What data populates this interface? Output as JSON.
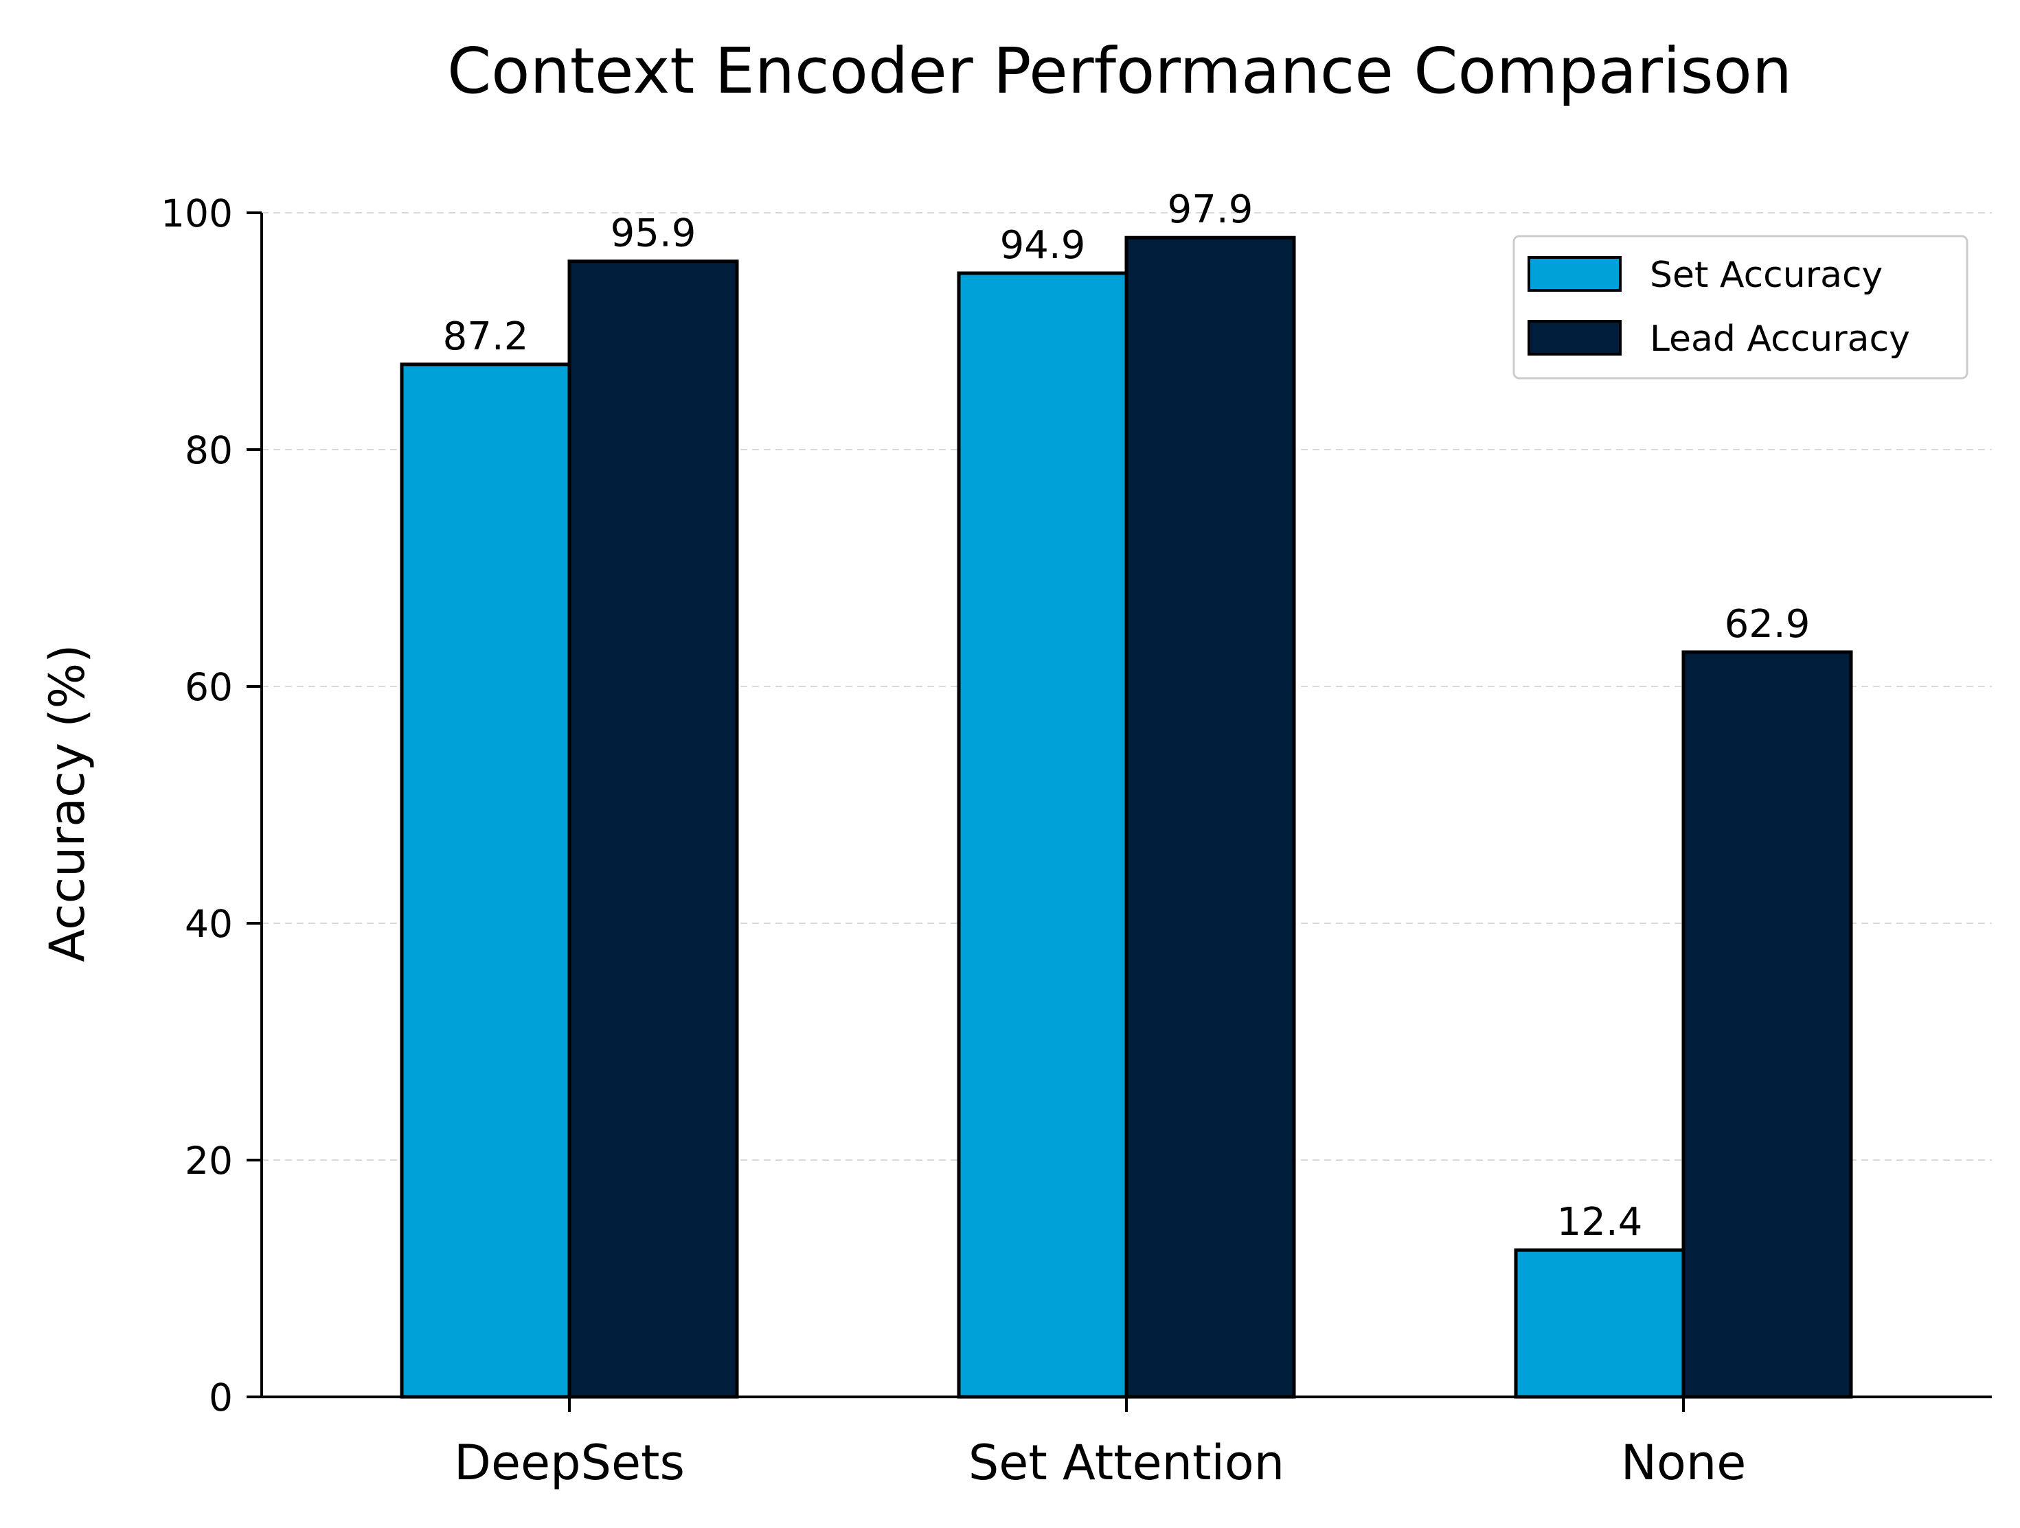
{
  "chart_data": {
    "type": "bar",
    "title": "Context Encoder Performance Comparison",
    "xlabel": "",
    "ylabel": "Accuracy (%)",
    "ylim": [
      0,
      100
    ],
    "yticks": [
      0,
      20,
      40,
      60,
      80,
      100
    ],
    "categories": [
      "DeepSets",
      "Set Attention",
      "None"
    ],
    "series": [
      {
        "name": "Set Accuracy",
        "values": [
          87.2,
          94.9,
          12.4
        ],
        "labels": [
          "87.2",
          "94.9",
          "12.4"
        ],
        "color": "#00a0d8"
      },
      {
        "name": "Lead Accuracy",
        "values": [
          95.9,
          97.9,
          62.9
        ],
        "labels": [
          "95.9",
          "97.9",
          "62.9"
        ],
        "color": "#001d3b"
      }
    ],
    "grid": true,
    "legend_position": "top-right"
  }
}
